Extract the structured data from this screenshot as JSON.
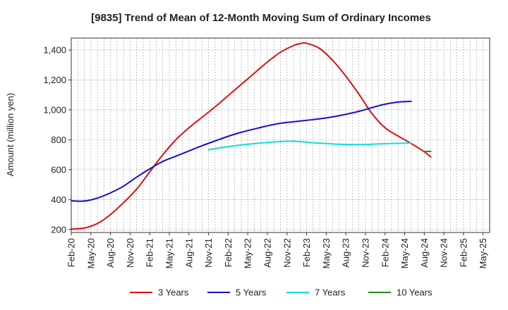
{
  "chart_data": {
    "type": "line",
    "title": "[9835]  Trend of Mean of 12-Month Moving Sum of Ordinary Incomes",
    "xlabel": "",
    "ylabel": "Amount (million yen)",
    "ylim": [
      180,
      1480
    ],
    "yticks": [
      200,
      400,
      600,
      800,
      1000,
      1200,
      1400
    ],
    "ytick_labels": [
      "200",
      "400",
      "600",
      "800",
      "1,000",
      "1,200",
      "1,400"
    ],
    "x_start": "Feb-20",
    "x_count": 64,
    "xtick_labels": [
      "Feb-20",
      "May-20",
      "Aug-20",
      "Nov-20",
      "Feb-21",
      "May-21",
      "Aug-21",
      "Nov-21",
      "Feb-22",
      "May-22",
      "Aug-22",
      "Nov-22",
      "Feb-23",
      "May-23",
      "Aug-23",
      "Nov-23",
      "Feb-24",
      "May-24",
      "Aug-24",
      "Nov-24",
      "Feb-25",
      "May-25"
    ],
    "grid": true,
    "legend_position": "bottom",
    "series": [
      {
        "name": "3 Years",
        "color": "#dd1111",
        "points": [
          [
            0,
            203
          ],
          [
            2,
            210
          ],
          [
            4,
            240
          ],
          [
            6,
            300
          ],
          [
            8,
            380
          ],
          [
            10,
            470
          ],
          [
            12,
            585
          ],
          [
            14,
            700
          ],
          [
            16,
            800
          ],
          [
            18,
            880
          ],
          [
            20,
            950
          ],
          [
            22,
            1020
          ],
          [
            24,
            1095
          ],
          [
            26,
            1170
          ],
          [
            28,
            1245
          ],
          [
            30,
            1320
          ],
          [
            32,
            1385
          ],
          [
            34,
            1430
          ],
          [
            35,
            1443
          ],
          [
            36,
            1445
          ],
          [
            38,
            1410
          ],
          [
            40,
            1330
          ],
          [
            42,
            1225
          ],
          [
            44,
            1105
          ],
          [
            46,
            975
          ],
          [
            48,
            880
          ],
          [
            50,
            825
          ],
          [
            52,
            775
          ],
          [
            54,
            720
          ],
          [
            55,
            685
          ]
        ]
      },
      {
        "name": "5 Years",
        "color": "#1111cc",
        "points": [
          [
            0,
            392
          ],
          [
            2,
            390
          ],
          [
            4,
            410
          ],
          [
            6,
            445
          ],
          [
            8,
            490
          ],
          [
            10,
            550
          ],
          [
            12,
            605
          ],
          [
            14,
            655
          ],
          [
            16,
            690
          ],
          [
            18,
            725
          ],
          [
            20,
            760
          ],
          [
            22,
            792
          ],
          [
            24,
            823
          ],
          [
            26,
            850
          ],
          [
            28,
            872
          ],
          [
            30,
            893
          ],
          [
            32,
            910
          ],
          [
            34,
            920
          ],
          [
            36,
            930
          ],
          [
            38,
            940
          ],
          [
            40,
            953
          ],
          [
            42,
            970
          ],
          [
            44,
            990
          ],
          [
            46,
            1015
          ],
          [
            48,
            1038
          ],
          [
            50,
            1052
          ],
          [
            52,
            1057
          ]
        ]
      },
      {
        "name": "7 Years",
        "color": "#11dddd",
        "points": [
          [
            21,
            733
          ],
          [
            23,
            748
          ],
          [
            25,
            760
          ],
          [
            27,
            770
          ],
          [
            29,
            778
          ],
          [
            31,
            785
          ],
          [
            33,
            790
          ],
          [
            35,
            788
          ],
          [
            37,
            780
          ],
          [
            39,
            775
          ],
          [
            41,
            770
          ],
          [
            43,
            768
          ],
          [
            45,
            768
          ],
          [
            47,
            772
          ],
          [
            49,
            775
          ],
          [
            52,
            778
          ]
        ]
      },
      {
        "name": "10 Years",
        "color": "#228822",
        "points": [
          [
            54,
            722
          ],
          [
            55,
            722
          ]
        ]
      }
    ]
  }
}
